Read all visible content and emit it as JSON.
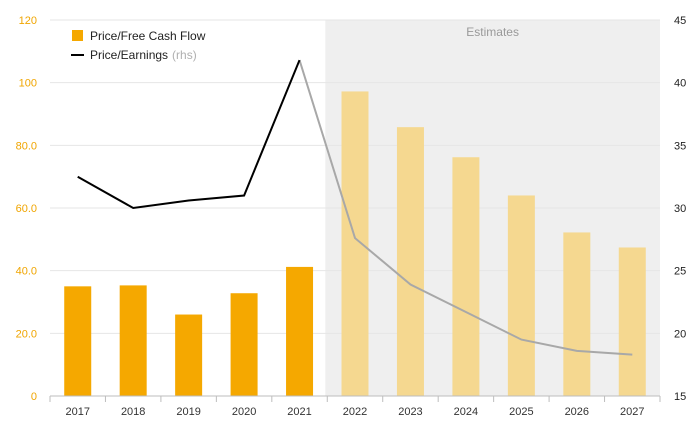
{
  "chart_data": {
    "type": "bar+line",
    "categories": [
      "2017",
      "2018",
      "2019",
      "2020",
      "2021",
      "2022",
      "2023",
      "2024",
      "2025",
      "2026",
      "2027"
    ],
    "estimate_start_index": 5,
    "shaded_region_label": "Estimates",
    "left_axis": {
      "ylim": [
        0,
        120
      ],
      "ticks": [
        "0",
        "20.0",
        "40.0",
        "60.0",
        "80.0",
        "100",
        "120"
      ],
      "tick_values": [
        0,
        20,
        40,
        60,
        80,
        100,
        120
      ]
    },
    "right_axis": {
      "ylim": [
        15,
        45
      ],
      "ticks": [
        "15",
        "20",
        "25",
        "30",
        "35",
        "40",
        "45"
      ],
      "tick_values": [
        15,
        20,
        25,
        30,
        35,
        40,
        45
      ]
    },
    "series": [
      {
        "name": "Price/Free Cash Flow",
        "type": "bar",
        "axis": "left",
        "values": [
          35.0,
          35.3,
          26.0,
          32.8,
          41.2,
          97.2,
          85.8,
          76.2,
          64.0,
          52.2,
          47.4
        ]
      },
      {
        "name": "Price/Earnings",
        "legend_suffix": "(rhs)",
        "type": "line",
        "axis": "right",
        "values": [
          32.5,
          30.0,
          30.6,
          31.0,
          41.8,
          27.6,
          23.9,
          21.7,
          19.5,
          18.6,
          18.3
        ]
      }
    ],
    "colors": {
      "bar": "#f5a800",
      "bar_estimate": "#f5d890",
      "line": "#000000",
      "line_estimate": "#a8a8a8",
      "shade": "#efefef",
      "grid": "#e6e6e6"
    },
    "legend_position": "top-left"
  }
}
